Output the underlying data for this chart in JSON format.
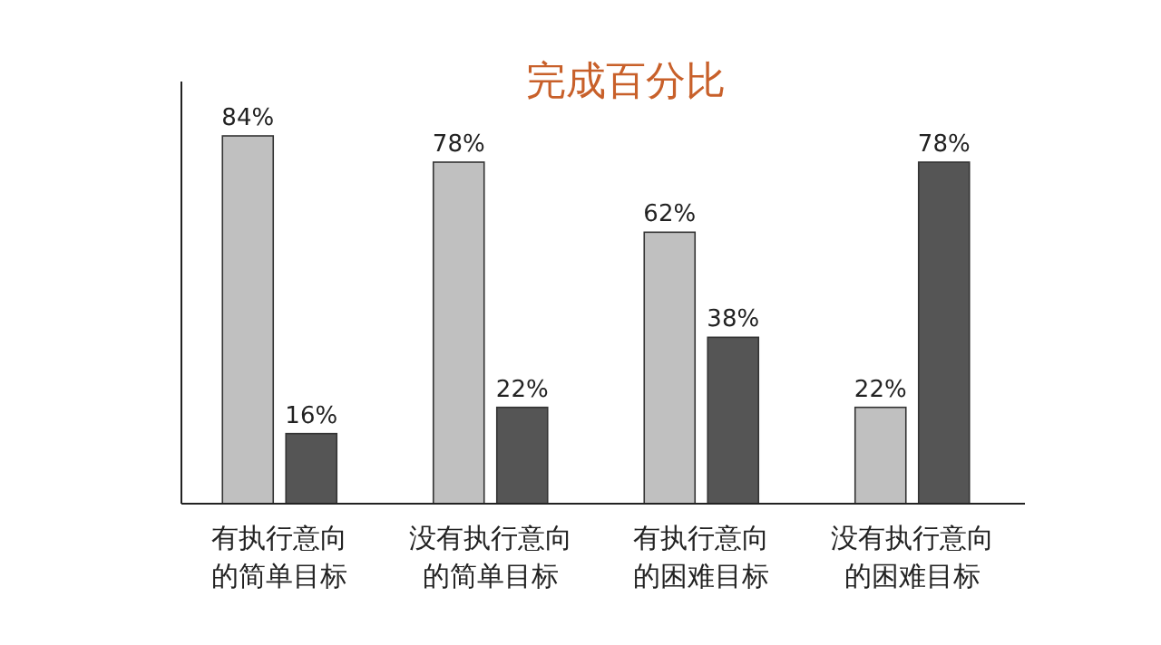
{
  "chart_data": {
    "type": "bar",
    "title": "完成百分比",
    "categories": [
      "有执行意向的简单目标",
      "没有执行意向的简单目标",
      "有执行意向的困难目标",
      "没有执行意向的困难目标"
    ],
    "series": [
      {
        "color": "#c0c0c0",
        "values": [
          84,
          78,
          62,
          22
        ],
        "value_labels": [
          "84%",
          "78%",
          "62%",
          "22%"
        ]
      },
      {
        "color": "#555555",
        "values": [
          16,
          22,
          38,
          78
        ],
        "value_labels": [
          "16%",
          "22%",
          "38%",
          "78%"
        ]
      }
    ]
  }
}
